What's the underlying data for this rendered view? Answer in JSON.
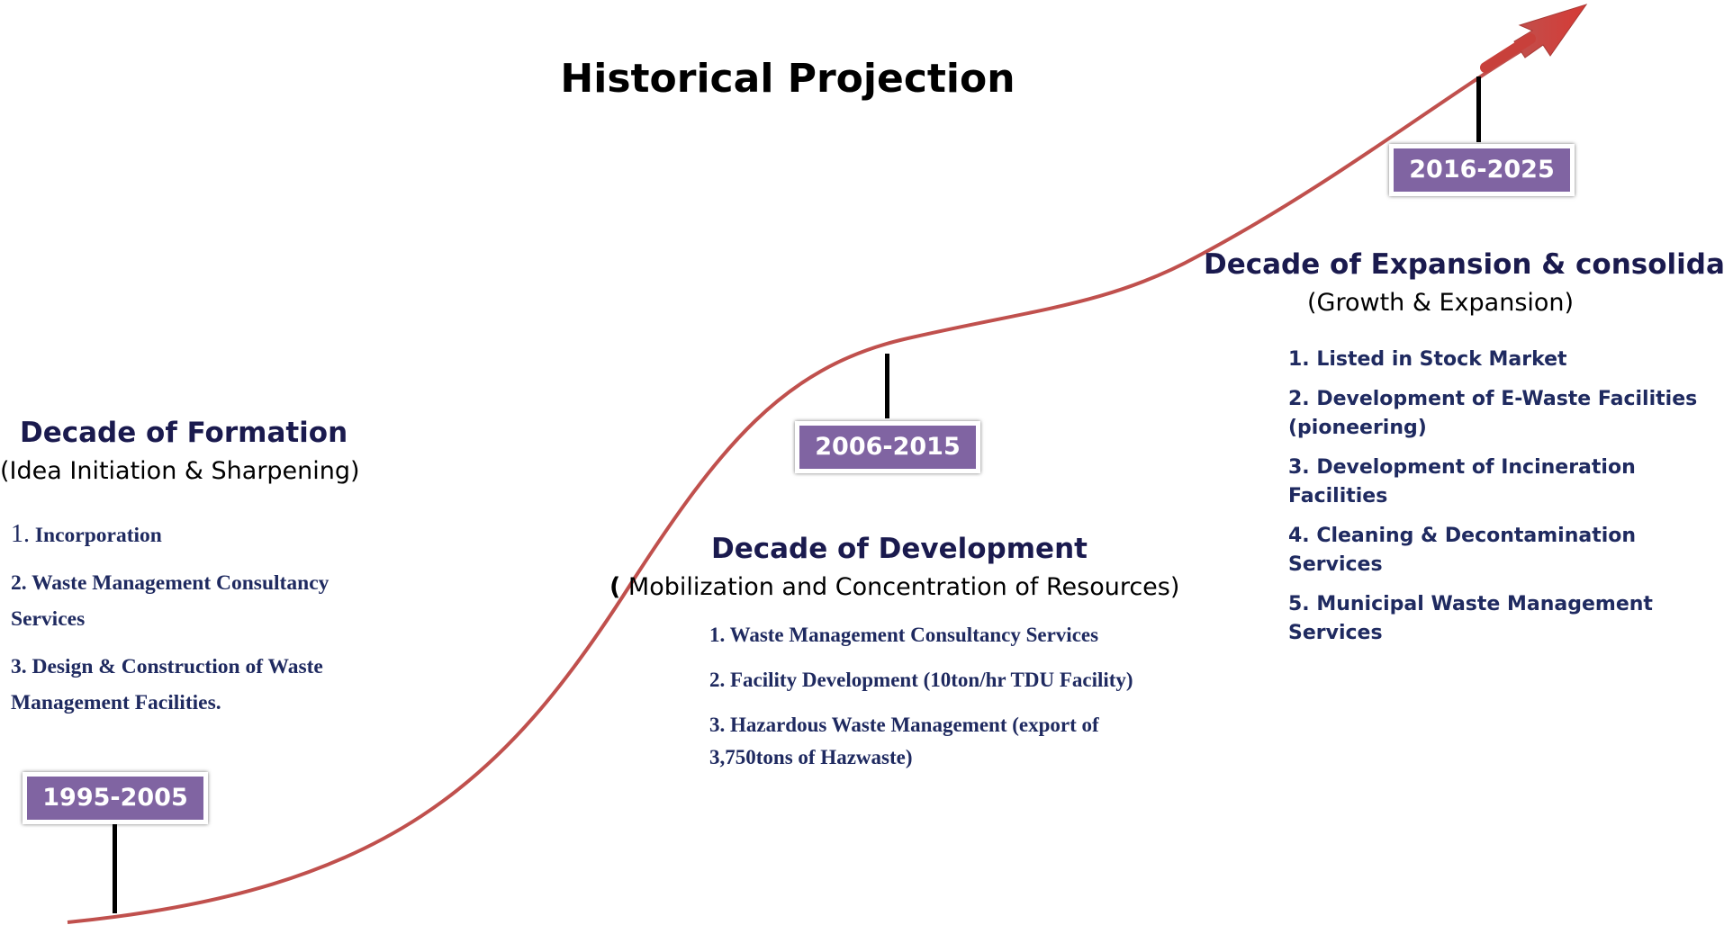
{
  "title": "Historical Projection",
  "colors": {
    "curve": "#c0504d",
    "arrow": "#c0504d",
    "badge": "#8064a2",
    "list_text": "#1f2a60"
  },
  "periods": [
    {
      "badge": "1995-2005",
      "heading": "Decade of Formation",
      "subheading": "(Idea Initiation & Sharpening)",
      "items": [
        {
          "num": "1.",
          "text": "Incorporation"
        },
        {
          "num": "2.",
          "text": "Waste Management Consultancy Services"
        },
        {
          "num": "3.",
          "text": "Design & Construction of Waste Management Facilities."
        }
      ]
    },
    {
      "badge": "2006-2015",
      "heading": "Decade of  Development",
      "subheading_paren": "(",
      "subheading": " Mobilization and Concentration of Resources)",
      "items": [
        "1.  Waste Management Consultancy Services",
        "2. Facility Development (10ton/hr TDU Facility)",
        "3. Hazardous Waste Management (export of  3,750tons of Hazwaste)"
      ]
    },
    {
      "badge": "2016-2025",
      "heading": "Decade of Expansion & consolidation",
      "subheading": "(Growth & Expansion)",
      "items": [
        "1. Listed  in Stock Market",
        "2. Development of E-Waste Facilities (pioneering)",
        "3. Development of Incineration Facilities",
        "4. Cleaning & Decontamination Services",
        "5. Municipal Waste Management Services"
      ]
    }
  ]
}
